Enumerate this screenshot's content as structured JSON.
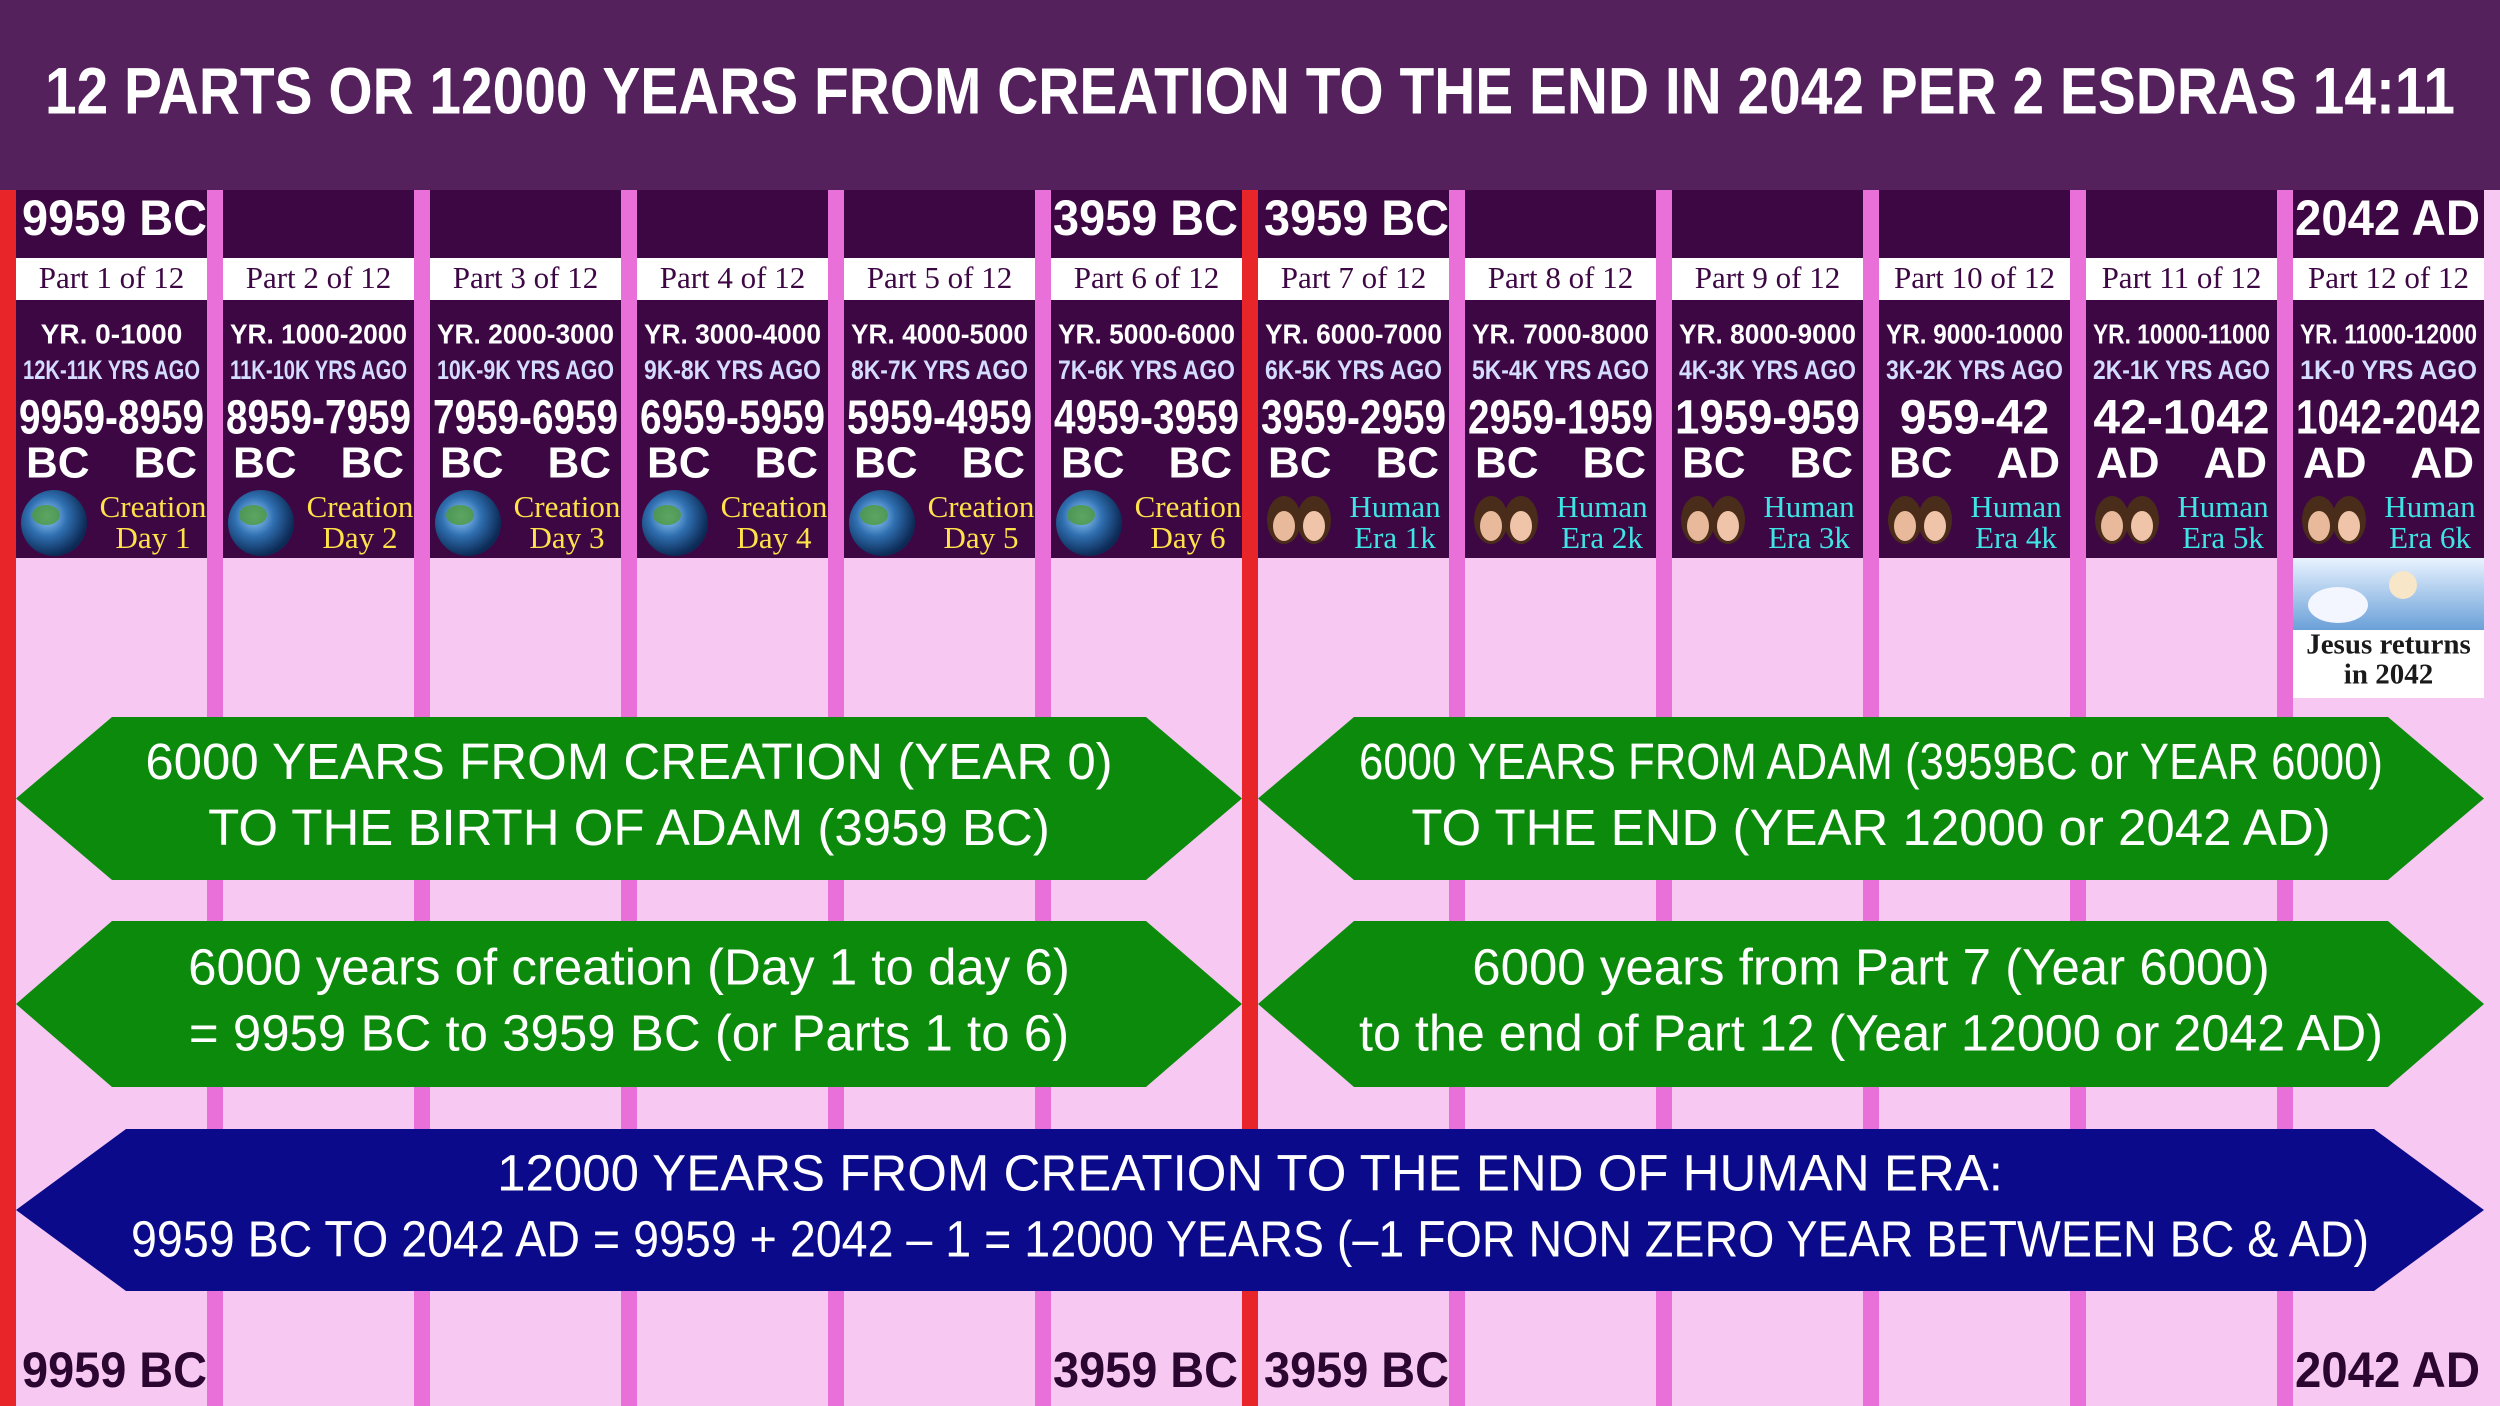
{
  "title": "12 PARTS OR 12000 YEARS FROM CREATION TO THE END IN 2042 PER 2 ESDRAS 14:11",
  "top_labels": {
    "creation_start": "9959 BC",
    "adam_end": "3959 BC",
    "adam_start": "3959 BC",
    "end": "2042 AD"
  },
  "bottom_labels": {
    "creation_start": "9959 BC",
    "adam_end": "3959 BC",
    "adam_start": "3959 BC",
    "end": "2042 AD"
  },
  "columns": [
    {
      "part": "Part 1 of 12",
      "years": "YR. 0-1000",
      "ago": "12K-11K YRS AGO",
      "range": "9959-8959",
      "era_start": "BC",
      "era_end": "BC",
      "caption": [
        "Creation",
        "Day 1"
      ]
    },
    {
      "part": "Part 2 of 12",
      "years": "YR. 1000-2000",
      "ago": "11K-10K YRS AGO",
      "range": "8959-7959",
      "era_start": "BC",
      "era_end": "BC",
      "caption": [
        "Creation",
        "Day 2"
      ]
    },
    {
      "part": "Part 3 of 12",
      "years": "YR. 2000-3000",
      "ago": "10K-9K YRS AGO",
      "range": "7959-6959",
      "era_start": "BC",
      "era_end": "BC",
      "caption": [
        "Creation",
        "Day 3"
      ]
    },
    {
      "part": "Part 4 of 12",
      "years": "YR. 3000-4000",
      "ago": "9K-8K YRS AGO",
      "range": "6959-5959",
      "era_start": "BC",
      "era_end": "BC",
      "caption": [
        "Creation",
        "Day 4"
      ]
    },
    {
      "part": "Part 5 of 12",
      "years": "YR. 4000-5000",
      "ago": "8K-7K YRS AGO",
      "range": "5959-4959",
      "era_start": "BC",
      "era_end": "BC",
      "caption": [
        "Creation",
        "Day 5"
      ]
    },
    {
      "part": "Part 6 of 12",
      "years": "YR. 5000-6000",
      "ago": "7K-6K YRS AGO",
      "range": "4959-3959",
      "era_start": "BC",
      "era_end": "BC",
      "caption": [
        "Creation",
        "Day 6"
      ]
    },
    {
      "part": "Part 7 of 12",
      "years": "YR. 6000-7000",
      "ago": "6K-5K YRS AGO",
      "range": "3959-2959",
      "era_start": "BC",
      "era_end": "BC",
      "caption": [
        "Human",
        "Era 1k"
      ]
    },
    {
      "part": "Part 8 of 12",
      "years": "YR. 7000-8000",
      "ago": "5K-4K YRS AGO",
      "range": "2959-1959",
      "era_start": "BC",
      "era_end": "BC",
      "caption": [
        "Human",
        "Era 2k"
      ]
    },
    {
      "part": "Part 9 of 12",
      "years": "YR. 8000-9000",
      "ago": "4K-3K YRS AGO",
      "range": "1959-959",
      "era_start": "BC",
      "era_end": "BC",
      "caption": [
        "Human",
        "Era 3k"
      ]
    },
    {
      "part": "Part 10 of 12",
      "years": "YR. 9000-10000",
      "ago": "3K-2K YRS AGO",
      "range": "959-42",
      "era_start": "BC",
      "era_end": "AD",
      "caption": [
        "Human",
        "Era 4k"
      ]
    },
    {
      "part": "Part 11 of 12",
      "years": "YR. 10000-11000",
      "ago": "2K-1K YRS AGO",
      "range": "42-1042",
      "era_start": "AD",
      "era_end": "AD",
      "caption": [
        "Human",
        "Era 5k"
      ]
    },
    {
      "part": "Part 12 of 12",
      "years": "YR. 11000-12000",
      "ago": "1K-0 YRS AGO",
      "range": "1042-2042",
      "era_start": "AD",
      "era_end": "AD",
      "caption": [
        "Human",
        "Era 6k"
      ]
    }
  ],
  "jesus_caption": [
    "Jesus returns",
    "in 2042"
  ],
  "arrows": [
    {
      "lines": [
        "6000 YEARS FROM CREATION (YEAR 0)",
        "TO THE BIRTH OF ADAM (3959 BC)"
      ]
    },
    {
      "lines": [
        "6000 YEARS FROM ADAM (3959BC or YEAR 6000)",
        "TO THE END (YEAR 12000 or 2042 AD)"
      ]
    },
    {
      "lines": [
        "6000 years of creation (Day 1 to day 6)",
        "= 9959 BC to 3959 BC (or Parts 1 to 6)"
      ]
    },
    {
      "lines": [
        "6000 years from Part 7 (Year 6000)",
        "to the end of Part 12 (Year 12000 or 2042 AD)"
      ]
    },
    {
      "lines": [
        "12000 YEARS FROM CREATION TO THE END OF HUMAN ERA:",
        "9959 BC TO 2042 AD = 9959 + 2042 – 1 = 12000 YEARS (–1 FOR NON ZERO YEAR BETWEEN BC & AD)"
      ]
    }
  ]
}
